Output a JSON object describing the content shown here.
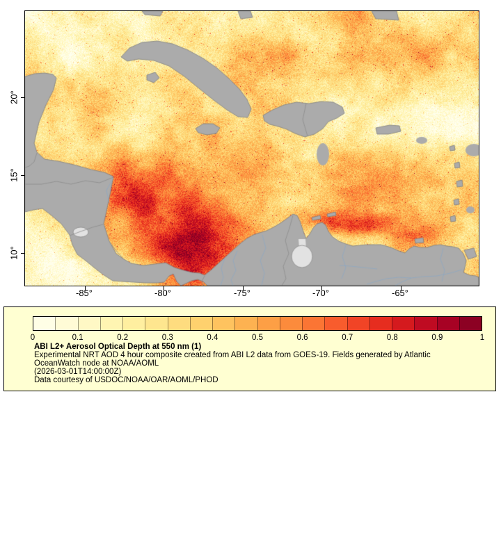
{
  "figure": {
    "map": {
      "y_ticks": [
        "20°",
        "15°",
        "10°"
      ],
      "x_ticks": [
        "-85°",
        "-80°",
        "-75°",
        "-70°",
        "-65°"
      ]
    },
    "legend": {
      "ticks": [
        "0",
        "0.1",
        "0.2",
        "0.3",
        "0.4",
        "0.5",
        "0.6",
        "0.7",
        "0.8",
        "0.9",
        "1"
      ],
      "title": "ABI L2+ Aerosol Optical Depth at 550 nm (1)",
      "description_line1": "Experimental NRT AOD 4 hour composite created from ABI L2 data from GOES-19. Fields generated by Atlantic",
      "description_line2": "OceanWatch node at NOAA/AOML",
      "timestamp": "(2026-03-01T14:00:00Z)",
      "credit": "Data courtesy of USDOC/NOAA/OAR/AOML/PHOD",
      "background": "#ffffd2",
      "palette": [
        "#ffffee",
        "#ffface",
        "#fff3a8",
        "#fee287",
        "#fecb66",
        "#fda94a",
        "#fc8137",
        "#f65029",
        "#e0211c",
        "#b40324",
        "#7f0023"
      ]
    },
    "colors": {
      "land": "#ababab",
      "coast": "#7f7f7f",
      "river": "#8aa7c6",
      "border": "#8c8c8c",
      "lake": "#e2e2e2"
    }
  },
  "chart_data": {
    "type": "heatmap",
    "title": "ABI L2+ Aerosol Optical Depth at 550 nm (1)",
    "colorbar": {
      "min": 0,
      "max": 1,
      "ticks": [
        0,
        0.1,
        0.2,
        0.3,
        0.4,
        0.5,
        0.6,
        0.7,
        0.8,
        0.9,
        1
      ]
    },
    "x_axis": {
      "tick_values": [
        -85,
        -80,
        -75,
        -70,
        -65
      ],
      "unit": "degrees longitude"
    },
    "y_axis": {
      "tick_values": [
        20,
        15,
        10
      ],
      "unit": "degrees latitude"
    }
  }
}
